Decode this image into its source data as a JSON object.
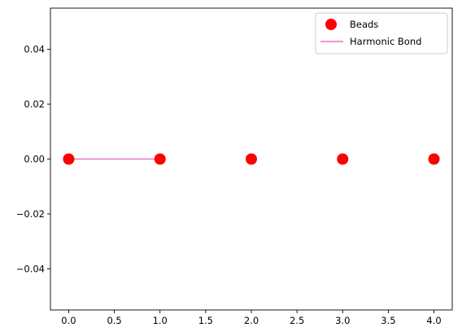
{
  "chart_data": {
    "type": "scatter",
    "title": "",
    "xlabel": "",
    "ylabel": "",
    "xlim": [
      -0.2,
      4.2
    ],
    "ylim": [
      -0.055,
      0.055
    ],
    "x_ticks": [
      0.0,
      0.5,
      1.0,
      1.5,
      2.0,
      2.5,
      3.0,
      3.5,
      4.0
    ],
    "x_tick_labels": [
      "0.0",
      "0.5",
      "1.0",
      "1.5",
      "2.0",
      "2.5",
      "3.0",
      "3.5",
      "4.0"
    ],
    "y_ticks": [
      0.04,
      0.02,
      0.0,
      -0.02,
      -0.04
    ],
    "y_tick_labels": [
      "0.04",
      "0.02",
      "0.00",
      "−0.02",
      "−0.04"
    ],
    "grid": false,
    "legend_position": "top-right",
    "series": [
      {
        "name": "Beads",
        "kind": "scatter",
        "color": "#ff0000",
        "x": [
          0,
          1,
          2,
          3,
          4
        ],
        "y": [
          0,
          0,
          0,
          0,
          0
        ]
      },
      {
        "name": "Harmonic Bond",
        "kind": "line",
        "color": "#e377c2",
        "x": [
          0,
          1
        ],
        "y": [
          0,
          0
        ]
      }
    ]
  }
}
